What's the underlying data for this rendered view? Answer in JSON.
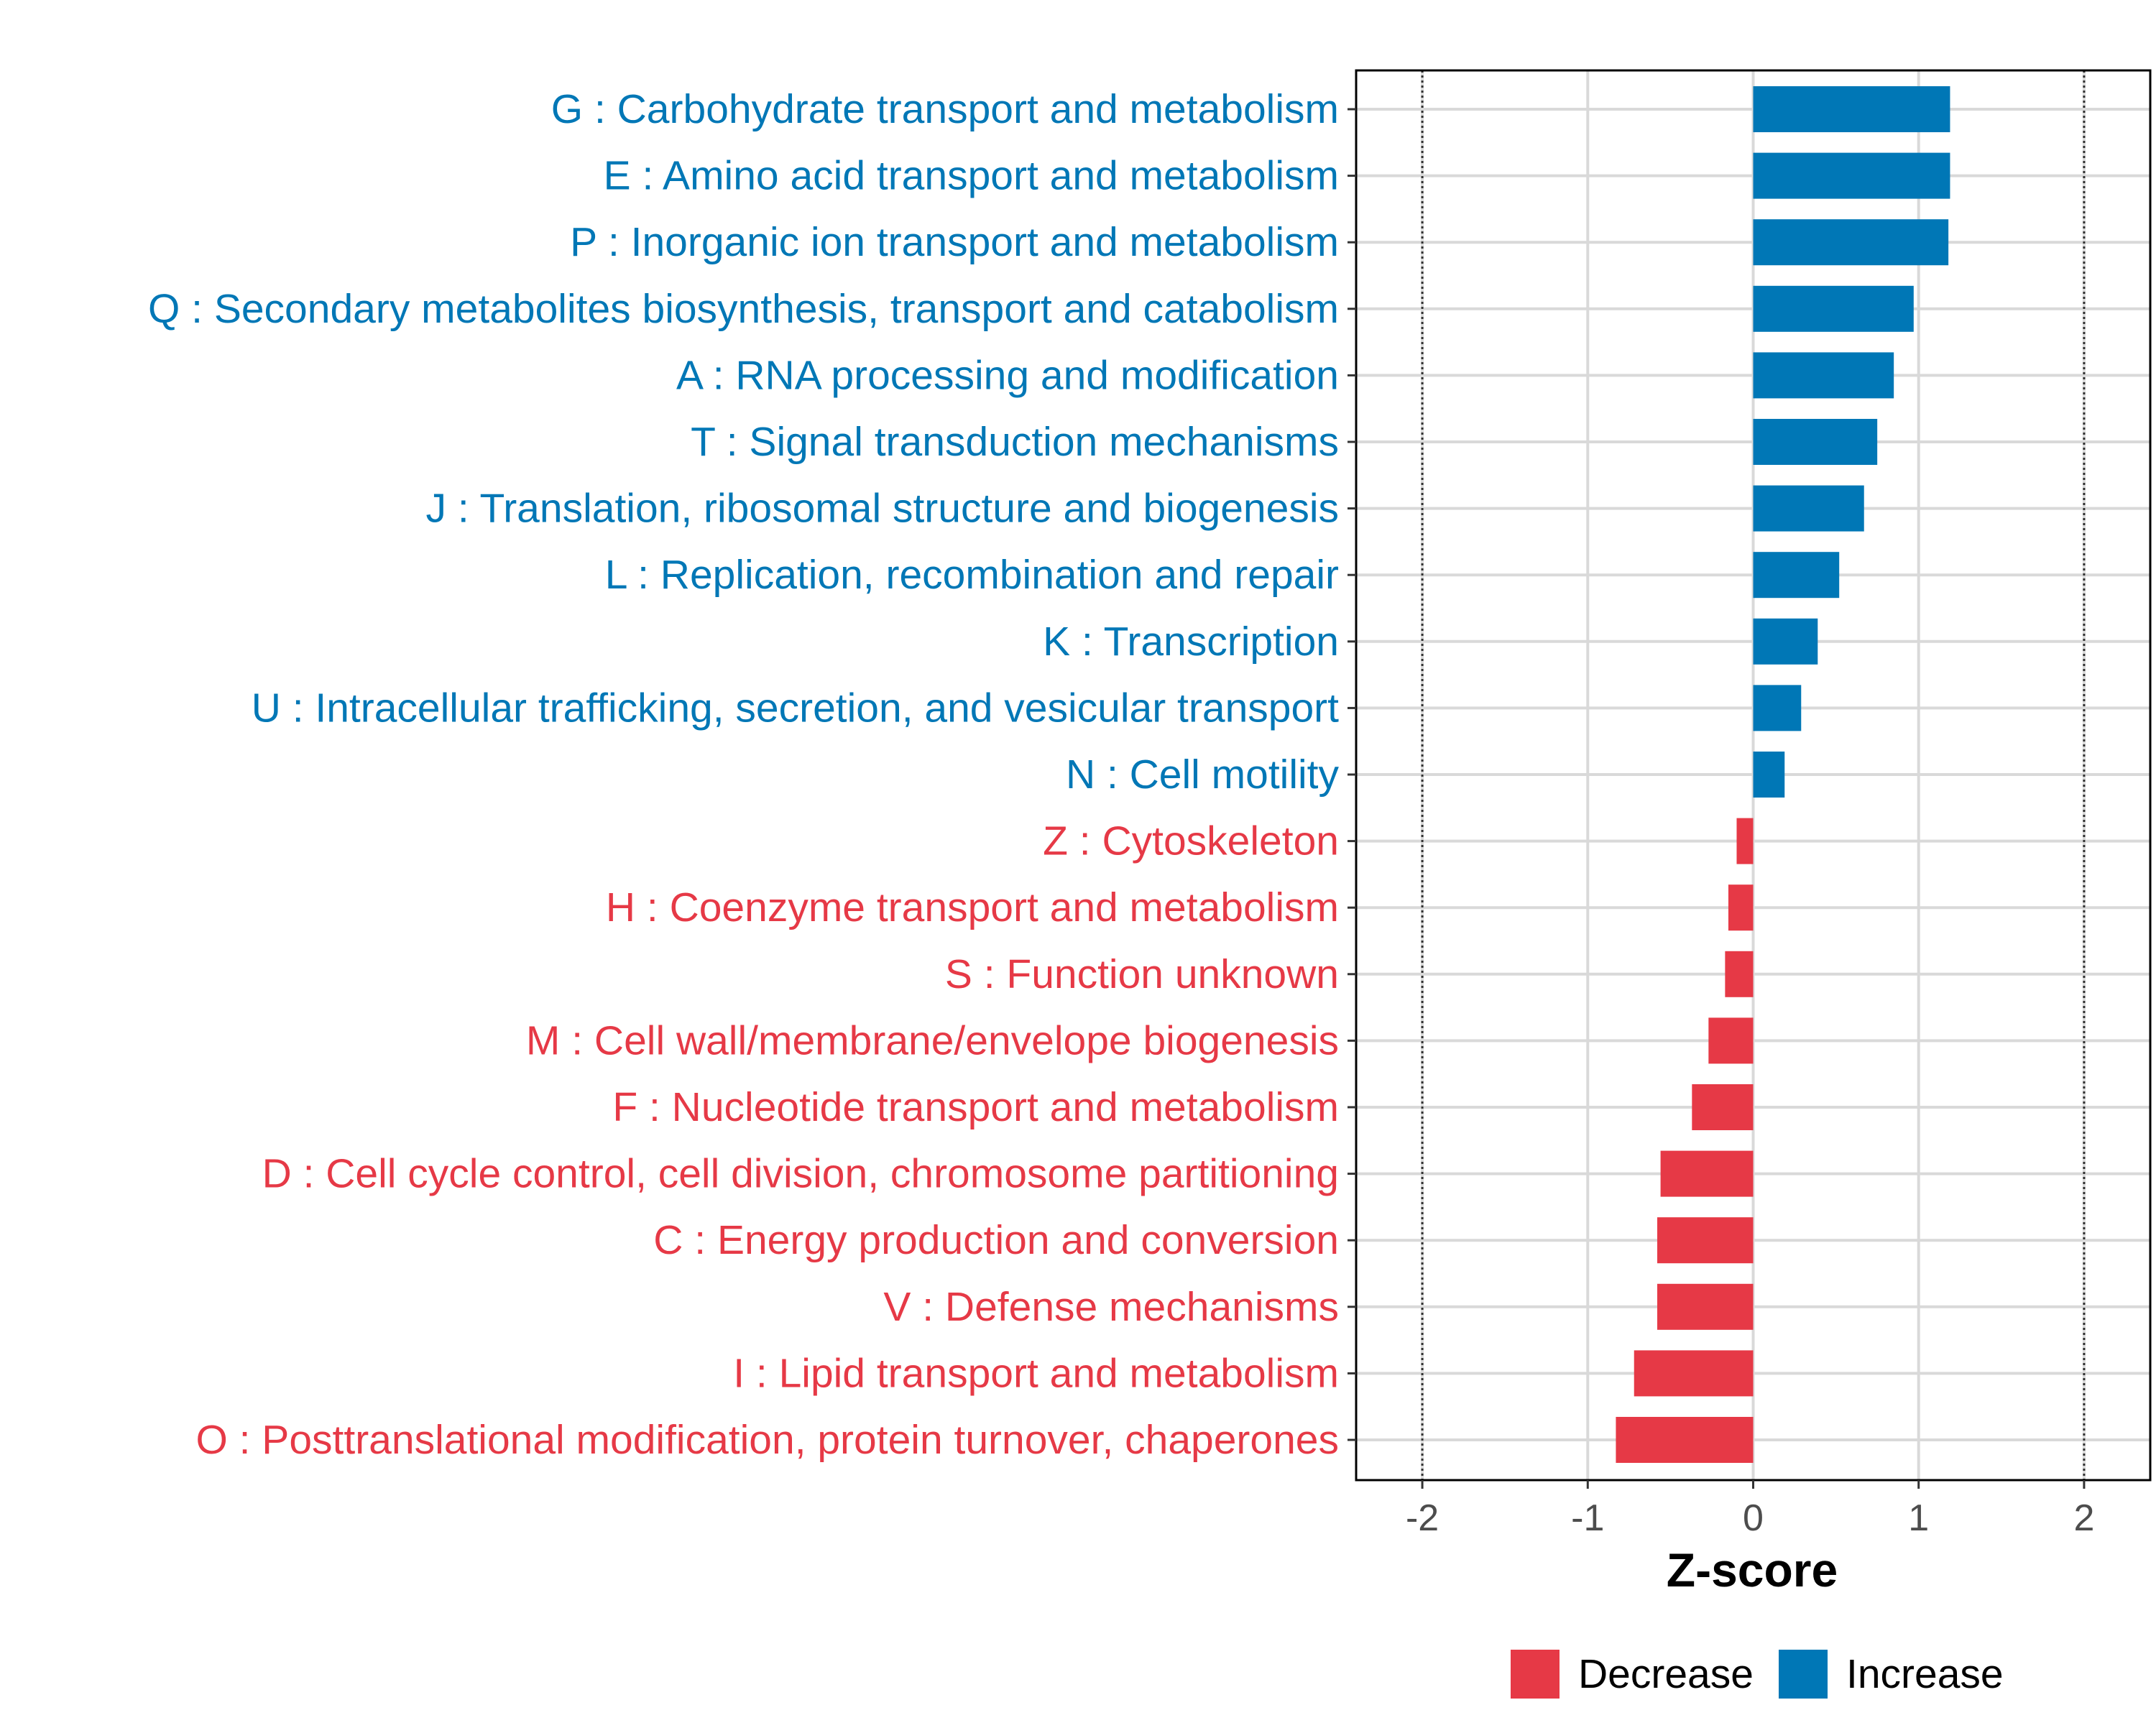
{
  "chart_data": {
    "type": "bar",
    "orientation": "horizontal",
    "title": "",
    "xlabel": "Z-score",
    "ylabel": "",
    "xlim": [
      -2.4,
      2.4
    ],
    "xticks": [
      -2,
      -1,
      0,
      1,
      2
    ],
    "xtick_labels": [
      "-2",
      "-1",
      "0",
      "1",
      "2"
    ],
    "reference_lines": [
      -2,
      2
    ],
    "grid": true,
    "categories": [
      "G : Carbohydrate transport and metabolism",
      "E : Amino acid transport and metabolism",
      "P : Inorganic ion transport and metabolism",
      "Q : Secondary metabolites biosynthesis, transport and catabolism",
      "A : RNA processing and modification",
      "T : Signal transduction mechanisms",
      "J : Translation, ribosomal structure and biogenesis",
      "L : Replication, recombination and repair",
      "K : Transcription",
      "U : Intracellular trafficking, secretion, and vesicular transport",
      "N : Cell motility",
      "Z : Cytoskeleton",
      "H : Coenzyme transport and metabolism",
      "S : Function unknown",
      "M : Cell wall/membrane/envelope biogenesis",
      "F : Nucleotide transport and metabolism",
      "D : Cell cycle control, cell division, chromosome partitioning",
      "C : Energy production and conversion",
      "V : Defense mechanisms",
      "I : Lipid transport and metabolism",
      "O : Posttranslational modification, protein turnover, chaperones"
    ],
    "values": [
      1.19,
      1.19,
      1.18,
      0.97,
      0.85,
      0.75,
      0.67,
      0.52,
      0.39,
      0.29,
      0.19,
      -0.1,
      -0.15,
      -0.17,
      -0.27,
      -0.37,
      -0.56,
      -0.58,
      -0.58,
      -0.72,
      -0.83
    ],
    "legend": {
      "position": "bottom",
      "entries": [
        {
          "name": "Decrease",
          "color": "#E63946"
        },
        {
          "name": "Increase",
          "color": "#0077B6"
        }
      ]
    },
    "colors": {
      "increase": "#0077B6",
      "decrease": "#E63946",
      "grid": "#d9d9d9",
      "axis": "#000000"
    }
  }
}
